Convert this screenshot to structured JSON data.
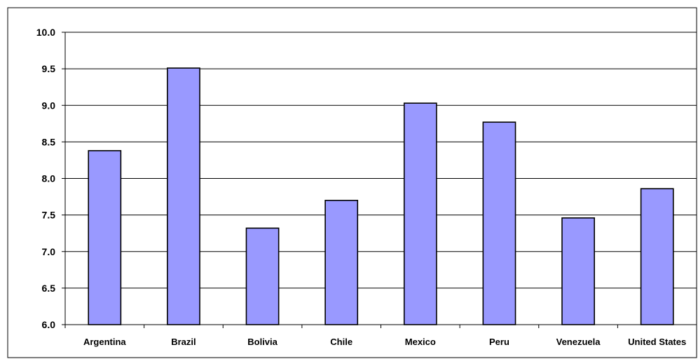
{
  "chart_data": {
    "type": "bar",
    "title": "",
    "xlabel": "",
    "ylabel": "",
    "categories": [
      "Argentina",
      "Brazil",
      "Bolivia",
      "Chile",
      "Mexico",
      "Peru",
      "Venezuela",
      "United States"
    ],
    "values": [
      8.38,
      9.51,
      7.32,
      7.7,
      9.03,
      8.77,
      7.46,
      7.86
    ],
    "ylim": [
      6.0,
      10.0
    ],
    "ytick_step": 0.5,
    "ytick_labels": [
      "6.0",
      "6.5",
      "7.0",
      "7.5",
      "8.0",
      "8.5",
      "9.0",
      "9.5",
      "10.0"
    ],
    "grid": true,
    "legend": "none",
    "colors": {
      "bar_fill": "#9999FF",
      "bar_stroke": "#000000",
      "grid": "#000000",
      "frame": "#000000"
    }
  }
}
